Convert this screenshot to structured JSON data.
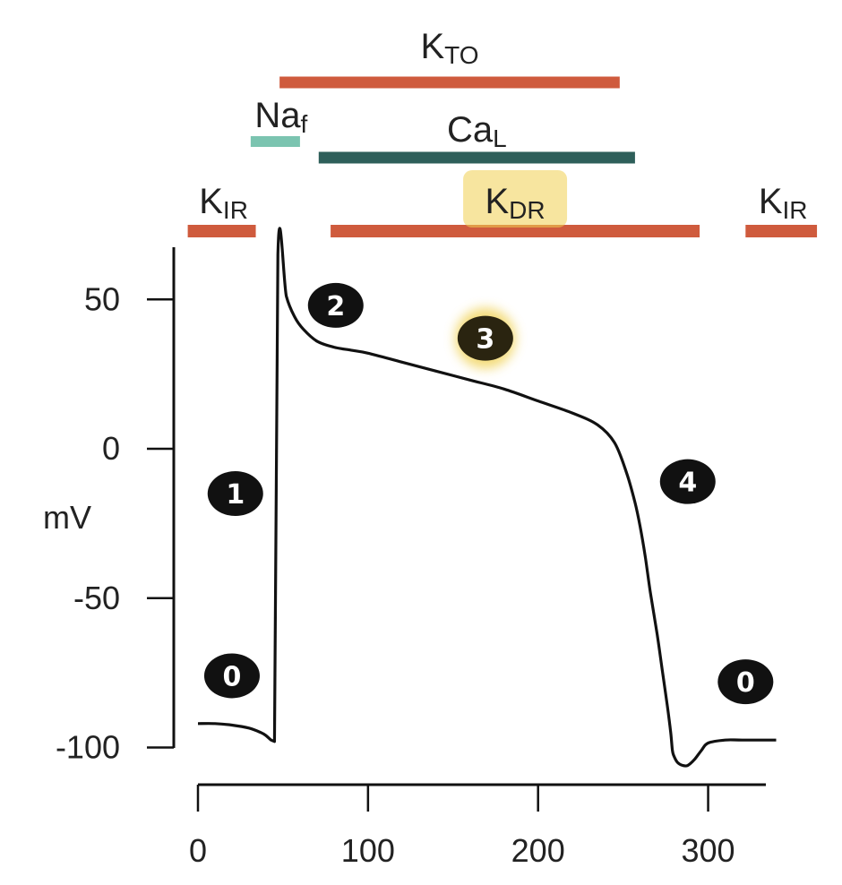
{
  "chart_data": {
    "type": "line",
    "title": "",
    "xlabel": "",
    "ylabel": "mV",
    "xlim": [
      0,
      340
    ],
    "ylim": [
      -100,
      60
    ],
    "x_ticks": [
      "0",
      "100",
      "200",
      "300"
    ],
    "y_ticks": [
      "50",
      "0",
      "-50",
      "-100"
    ],
    "series": [
      {
        "x": [
          0,
          10,
          20,
          30,
          37,
          40,
          43,
          45,
          47,
          52,
          57,
          62,
          70,
          80,
          90,
          100,
          120,
          140,
          160,
          180,
          200,
          220,
          235,
          245,
          252,
          257,
          260,
          263,
          266,
          270,
          273,
          276,
          278,
          279,
          280,
          282,
          285,
          288,
          292,
          296,
          300,
          310,
          320,
          340
        ],
        "y": [
          -92,
          -92,
          -92.5,
          -93.5,
          -95,
          -96,
          -97.5,
          -98,
          65,
          51,
          44,
          40,
          36,
          34,
          33,
          32,
          29,
          26,
          23,
          20,
          16,
          12,
          8,
          2,
          -8,
          -18,
          -26,
          -36,
          -48,
          -62,
          -74,
          -86,
          -95,
          -101,
          -103,
          -105,
          -106,
          -106,
          -104,
          -101,
          -98.5,
          -97.5,
          -97.5,
          -97.5
        ]
      }
    ],
    "currents": [
      {
        "base": "K",
        "sub": "TO",
        "x": [
          48,
          248
        ],
        "color": "#cf5b3d"
      },
      {
        "base": "Na",
        "sub": "f",
        "x": [
          31,
          60
        ],
        "color": "#7bc4b0"
      },
      {
        "base": "Ca",
        "sub": "L",
        "x": [
          71,
          257
        ],
        "color": "#2e5f5a"
      },
      {
        "base": "K",
        "sub": "DR",
        "x": [
          78,
          295
        ],
        "color": "#cf5b3d",
        "highlighted": true
      },
      {
        "base": "K",
        "sub": "IR",
        "x": [
          -6,
          34
        ],
        "color": "#cf5b3d"
      },
      {
        "base": "K",
        "sub": "IR",
        "x": [
          322,
          364
        ],
        "color": "#cf5b3d"
      }
    ],
    "phases": [
      {
        "label": "0",
        "x": 20,
        "y": -76
      },
      {
        "label": "1",
        "x": 22,
        "y": -15
      },
      {
        "label": "2",
        "x": 81,
        "y": 48
      },
      {
        "label": "3",
        "x": 169,
        "y": 37,
        "highlighted": true
      },
      {
        "label": "4",
        "x": 288,
        "y": -11
      },
      {
        "label": "0",
        "x": 322,
        "y": -78
      }
    ],
    "colors": {
      "trace": "#111111",
      "highlight": "#f0d050",
      "marker": "#111111"
    }
  }
}
